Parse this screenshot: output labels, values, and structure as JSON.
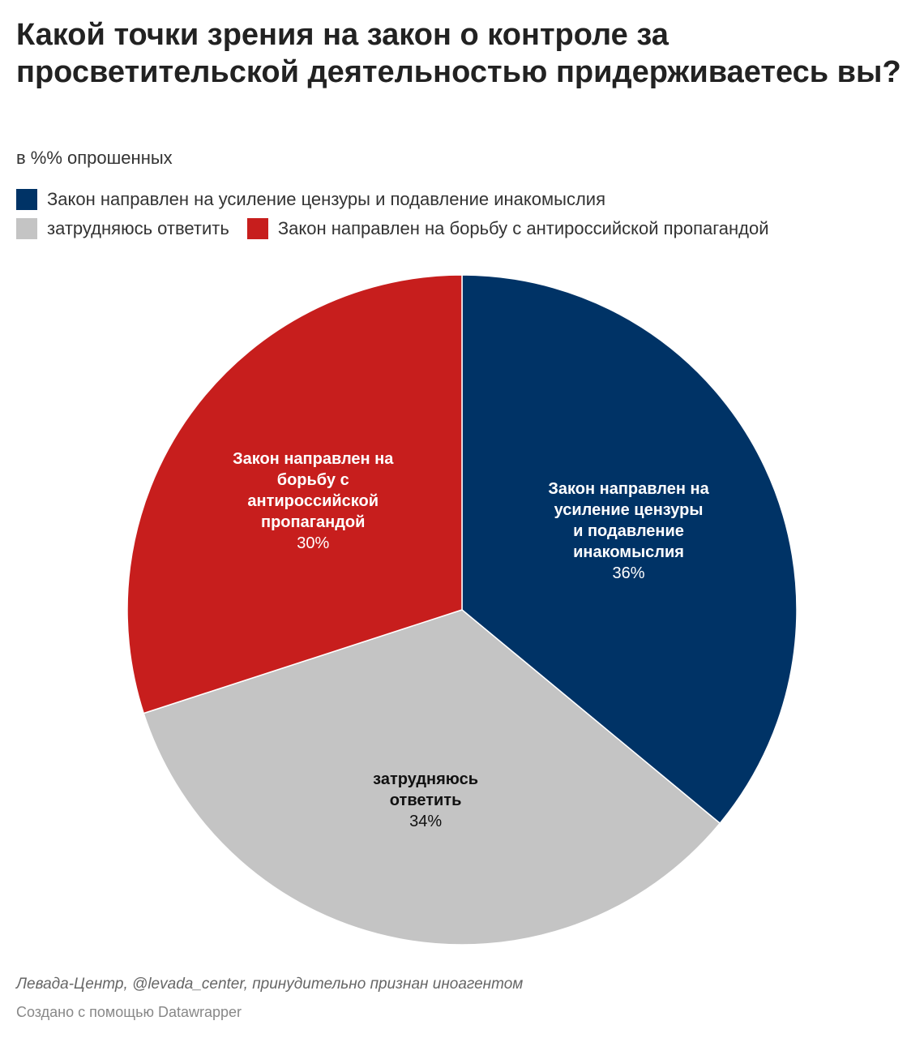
{
  "header": {
    "title": "Какой точки зрения на закон о контроле за просветительской деятельностью придерживаетесь вы?",
    "subtitle": "в %% опрошенных"
  },
  "legend": [
    {
      "label": "Закон направлен на усиление цензуры и подавление инакомыслия",
      "color": "#003366"
    },
    {
      "label": "затрудняюсь ответить",
      "color": "#c4c4c4"
    },
    {
      "label": "Закон направлен на борьбу с антироссийской пропагандой",
      "color": "#c71e1d"
    }
  ],
  "chart_data": {
    "type": "pie",
    "title": "Какой точки зрения на закон о контроле за просветительской деятельностью придерживаетесь вы?",
    "subtitle": "в %% опрошенных",
    "legend_position": "top",
    "slices": [
      {
        "label": "Закон направлен на усиление цензуры и подавление инакомыслия",
        "label_lines": [
          "Закон направлен на",
          "усиление цензуры",
          "и подавление",
          "инакомыслия"
        ],
        "value": 36,
        "value_label": "36%",
        "color": "#003366",
        "text_color": "#ffffff"
      },
      {
        "label": "затрудняюсь ответить",
        "label_lines": [
          "затрудняюсь",
          "ответить"
        ],
        "value": 34,
        "value_label": "34%",
        "color": "#c4c4c4",
        "text_color": "#111111"
      },
      {
        "label": "Закон направлен на борьбу с антироссийской пропагандой",
        "label_lines": [
          "Закон направлен на",
          "борьбу с",
          "антироссийской",
          "пропагандой"
        ],
        "value": 30,
        "value_label": "30%",
        "color": "#c71e1d",
        "text_color": "#ffffff"
      }
    ]
  },
  "footer": {
    "source": "Левада-Центр, @levada_center, принудительно признан иноагентом",
    "credit": "Создано с помощью Datawrapper"
  }
}
